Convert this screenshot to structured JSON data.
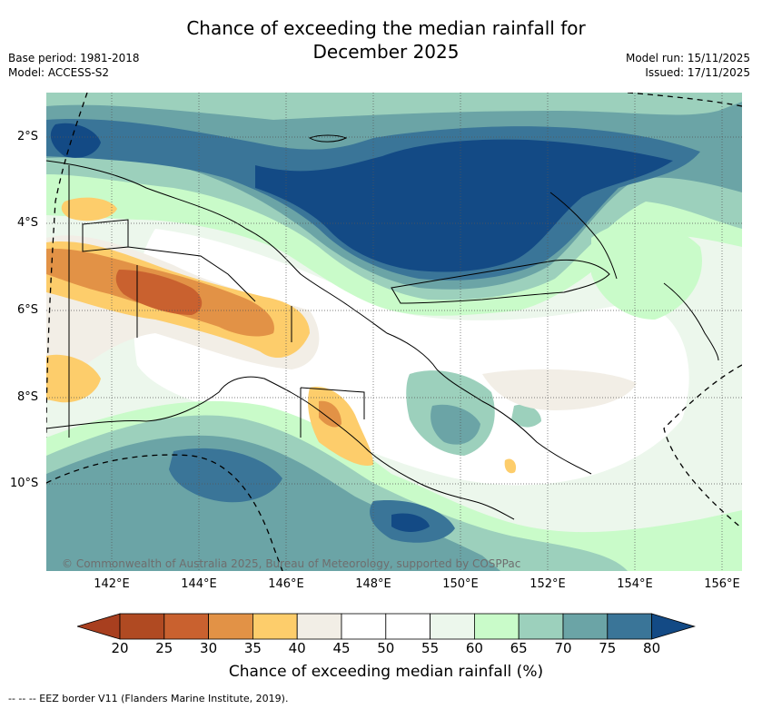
{
  "chart_data": {
    "type": "heatmap",
    "title_line1": "Chance of exceeding the median rainfall for",
    "title_line2": "December 2025",
    "base_period": "Base period: 1981-2018",
    "model": "Model: ACCESS-S2",
    "model_run": "Model run: 15/11/2025",
    "issued": "Issued: 17/11/2025",
    "lat_labels": [
      "2°S",
      "4°S",
      "6°S",
      "8°S",
      "10°S"
    ],
    "lon_labels": [
      "142°E",
      "144°E",
      "146°E",
      "148°E",
      "150°E",
      "152°E",
      "154°E",
      "156°E"
    ],
    "colorbar_ticks": [
      "20",
      "25",
      "30",
      "35",
      "40",
      "45",
      "50",
      "55",
      "60",
      "65",
      "70",
      "75",
      "80"
    ],
    "colorbar_label": "Chance of exceeding median rainfall (%)",
    "colorbar_colors": [
      "#a83f1f",
      "#b04a22",
      "#c9612f",
      "#e29246",
      "#fdcd6b",
      "#f2eee6",
      "#ffffff",
      "#ffffff",
      "#ecf7ec",
      "#c9fbc9",
      "#9cd0bc",
      "#6ba4a6",
      "#3a7598",
      "#134a85"
    ],
    "copyright": "© Commonwealth of Australia 2025, Bureau of Meteorology, supported by COSPPac",
    "footer": "--  --  -- EEZ border V11 (Flanders Marine Institute, 2019)."
  }
}
